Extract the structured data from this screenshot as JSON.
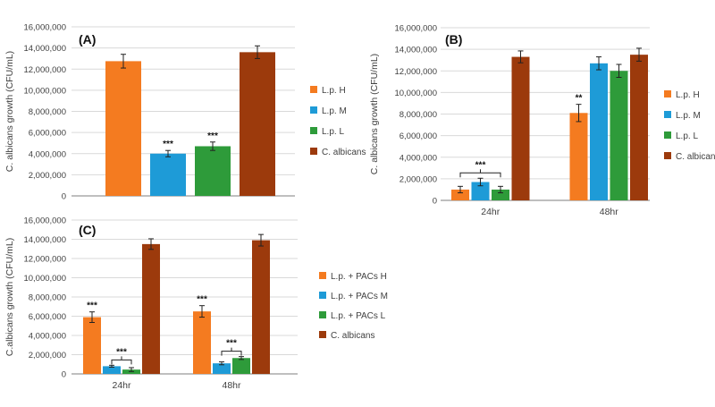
{
  "colors": {
    "H": "#F47B20",
    "M": "#1E9BD7",
    "L": "#2E9B3A",
    "C": "#9C3A0C",
    "grid": "#d9d9d9",
    "axis": "#7f7f7f",
    "text": "#404040"
  },
  "chart_data": [
    {
      "type": "bar",
      "panel": "(A)",
      "ylabel": "C. albicans growth (CFU/mL)",
      "xlabel": "",
      "ylim": [
        0,
        16000000
      ],
      "yticks": [
        "0",
        "2,000,000",
        "4,000,000",
        "6,000,000",
        "8,000,000",
        "10,000,000",
        "12,000,000",
        "14,000,000",
        "16,000,000"
      ],
      "grid": true,
      "legend_position": "right",
      "categories": [
        ""
      ],
      "series": [
        {
          "name": "L.p. H",
          "color_key": "H",
          "values": [
            12750000
          ],
          "errors": [
            650000
          ],
          "sig": [
            ""
          ]
        },
        {
          "name": "L.p. M",
          "color_key": "M",
          "values": [
            4000000
          ],
          "errors": [
            300000
          ],
          "sig": [
            "***"
          ]
        },
        {
          "name": "L.p. L",
          "color_key": "L",
          "values": [
            4700000
          ],
          "errors": [
            400000
          ],
          "sig": [
            "***"
          ]
        },
        {
          "name": "C. albicans",
          "color_key": "C",
          "values": [
            13600000
          ],
          "errors": [
            600000
          ],
          "sig": [
            ""
          ]
        }
      ]
    },
    {
      "type": "bar",
      "panel": "(B)",
      "ylabel": "C. albicans growth (CFU/mL)",
      "xlabel": "",
      "ylim": [
        0,
        16000000
      ],
      "yticks": [
        "0",
        "2,000,000",
        "4,000,000",
        "6,000,000",
        "8,000,000",
        "10,000,000",
        "12,000,000",
        "14,000,000",
        "16,000,000"
      ],
      "grid": true,
      "legend_position": "right",
      "categories": [
        "24hr",
        "48hr"
      ],
      "series": [
        {
          "name": "L.p. H",
          "color_key": "H",
          "values": [
            1000000,
            8100000
          ],
          "errors": [
            300000,
            800000
          ],
          "sig": [
            "",
            "**"
          ]
        },
        {
          "name": "L.p. M",
          "color_key": "M",
          "values": [
            1700000,
            12700000
          ],
          "errors": [
            350000,
            600000
          ],
          "sig": [
            "",
            ""
          ]
        },
        {
          "name": "L.p. L",
          "color_key": "L",
          "values": [
            1000000,
            12000000
          ],
          "errors": [
            300000,
            600000
          ],
          "sig": [
            "",
            ""
          ]
        },
        {
          "name": "C. albicans",
          "color_key": "C",
          "values": [
            13300000,
            13500000
          ],
          "errors": [
            550000,
            600000
          ],
          "sig": [
            "",
            ""
          ]
        }
      ],
      "brackets": [
        {
          "category": 0,
          "from_series": 0,
          "to_series": 2,
          "label": "***"
        }
      ]
    },
    {
      "type": "bar",
      "panel": "(C)",
      "ylabel": "C.albicans growth (CFU/mL)",
      "xlabel": "",
      "ylim": [
        0,
        16000000
      ],
      "yticks": [
        "0",
        "2,000,000",
        "4,000,000",
        "6,000,000",
        "8,000,000",
        "10,000,000",
        "12,000,000",
        "14,000,000",
        "16,000,000"
      ],
      "grid": true,
      "legend_position": "right",
      "categories": [
        "24hr",
        "48hr"
      ],
      "series": [
        {
          "name": "L.p. + PACs H",
          "color_key": "H",
          "values": [
            5900000,
            6500000
          ],
          "errors": [
            550000,
            600000
          ],
          "sig": [
            "***",
            "***"
          ]
        },
        {
          "name": "L.p. + PACs M",
          "color_key": "M",
          "values": [
            800000,
            1100000
          ],
          "errors": [
            100000,
            150000
          ],
          "sig": [
            "",
            ""
          ]
        },
        {
          "name": "L.p. + PACs L",
          "color_key": "L",
          "values": [
            450000,
            1650000
          ],
          "errors": [
            200000,
            150000
          ],
          "sig": [
            "",
            ""
          ]
        },
        {
          "name": "C. albicans",
          "color_key": "C",
          "values": [
            13500000,
            13900000
          ],
          "errors": [
            550000,
            600000
          ],
          "sig": [
            "",
            ""
          ]
        }
      ],
      "brackets": [
        {
          "category": 0,
          "from_series": 1,
          "to_series": 2,
          "label": "***"
        },
        {
          "category": 1,
          "from_series": 1,
          "to_series": 2,
          "label": "***"
        }
      ]
    }
  ]
}
